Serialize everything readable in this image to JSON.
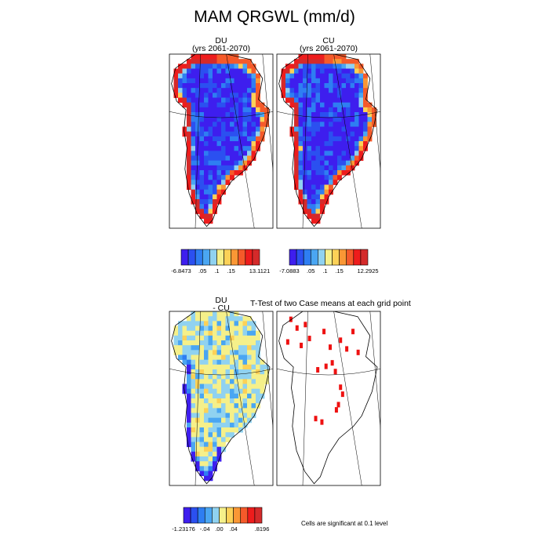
{
  "title": "MAM QRGWL (mm/d)",
  "colors": {
    "ocean": "#ffffff",
    "outline": "#000000",
    "significant": "#ee1111",
    "palette": [
      "#3e1eee",
      "#2b50f0",
      "#2e7ef2",
      "#4aa6f2",
      "#90d2f0",
      "#f5f08a",
      "#fcd157",
      "#fa9735",
      "#f55a2a",
      "#ee1c1c",
      "#d42a2a"
    ]
  },
  "chart_data": [
    {
      "type": "heatmap",
      "title": "DU",
      "subtitle": "(yrs 2061-2070)",
      "colorbar": {
        "tick_labels": [
          "-6.8473",
          ".05",
          ".1",
          ".15",
          "13.1121"
        ]
      }
    },
    {
      "type": "heatmap",
      "title": "CU",
      "subtitle": "(yrs 2061-2070)",
      "colorbar": {
        "tick_labels": [
          "-7.0883",
          ".05",
          ".1",
          ".15",
          "12.2925"
        ]
      }
    },
    {
      "type": "heatmap",
      "title": "DU",
      "subtitle": "- CU",
      "colorbar": {
        "tick_labels": [
          "-1.23176",
          "-.04",
          ".00",
          ".04",
          ".8196"
        ]
      }
    },
    {
      "type": "heatmap",
      "title": "T-Test of two Case means at each grid point",
      "note": "Cells are significant at 0.1 level"
    }
  ]
}
